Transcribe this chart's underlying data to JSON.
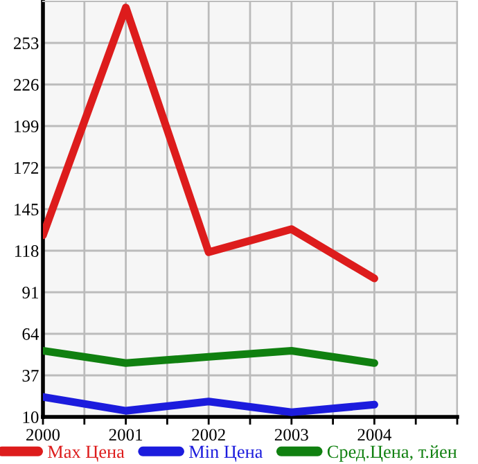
{
  "chart_data": {
    "type": "line",
    "x": [
      2000,
      2001,
      2002,
      2003,
      2004
    ],
    "series": [
      {
        "name": "Max Цена",
        "color": "#dd1c1c",
        "values": [
          128,
          276,
          117,
          132,
          100
        ]
      },
      {
        "name": "Min Цена",
        "color": "#1c1cdd",
        "values": [
          23,
          14,
          20,
          13,
          18
        ]
      },
      {
        "name": "Сред.Цена, т.йен",
        "color": "#108010",
        "values": [
          53,
          45,
          49,
          53,
          45
        ]
      }
    ],
    "xlim": [
      2000,
      2005
    ],
    "xticks": [
      2000,
      {
        "value": 2000.5,
        "label": null
      },
      2001,
      {
        "value": 2001.5,
        "label": null
      },
      2002,
      {
        "value": 2002.5,
        "label": null
      },
      2003,
      {
        "value": 2003.5,
        "label": null
      },
      2004,
      {
        "value": 2004.5,
        "label": null
      },
      {
        "value": 2005,
        "label": null
      }
    ],
    "ylim": [
      10,
      280
    ],
    "yticks": [
      10,
      37,
      64,
      91,
      118,
      145,
      172,
      199,
      226,
      253
    ],
    "grid": true,
    "legend": "bottom",
    "marker": "none",
    "line_style": "solid"
  }
}
